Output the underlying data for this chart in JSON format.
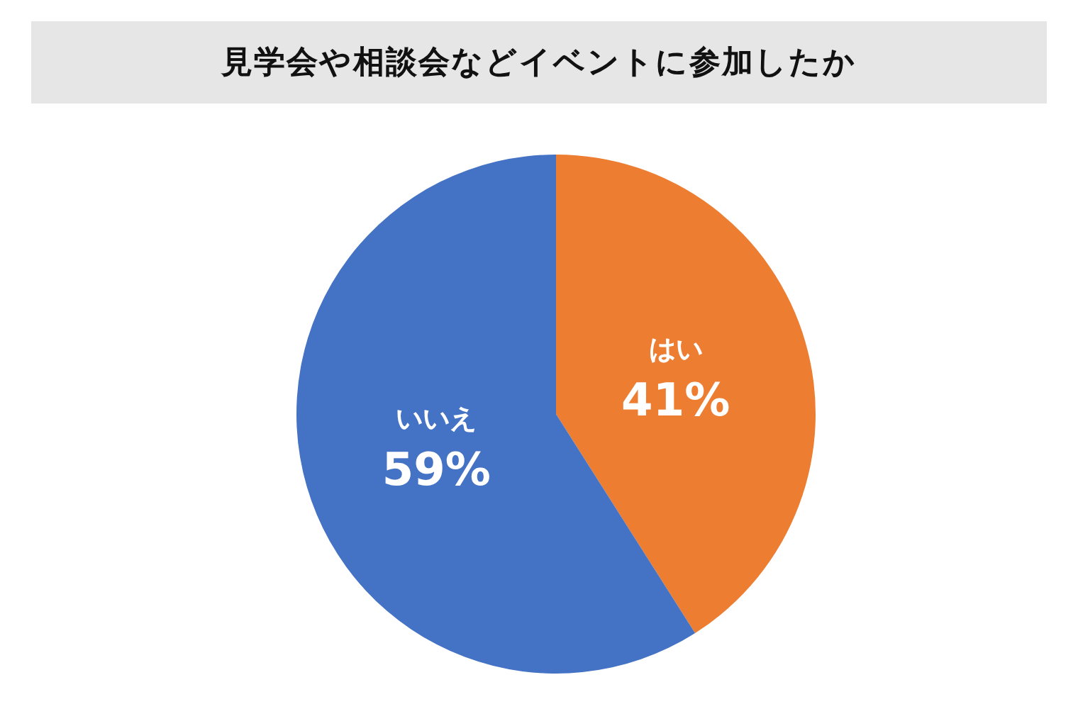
{
  "chart_data": {
    "type": "pie",
    "title": "見学会や相談会などイベントに参加したか",
    "categories": [
      "はい",
      "いいえ"
    ],
    "values": [
      41,
      59
    ],
    "colors": [
      "#ed7d31",
      "#4472c4"
    ],
    "value_labels": [
      "41%",
      "59%"
    ],
    "legend": false
  }
}
